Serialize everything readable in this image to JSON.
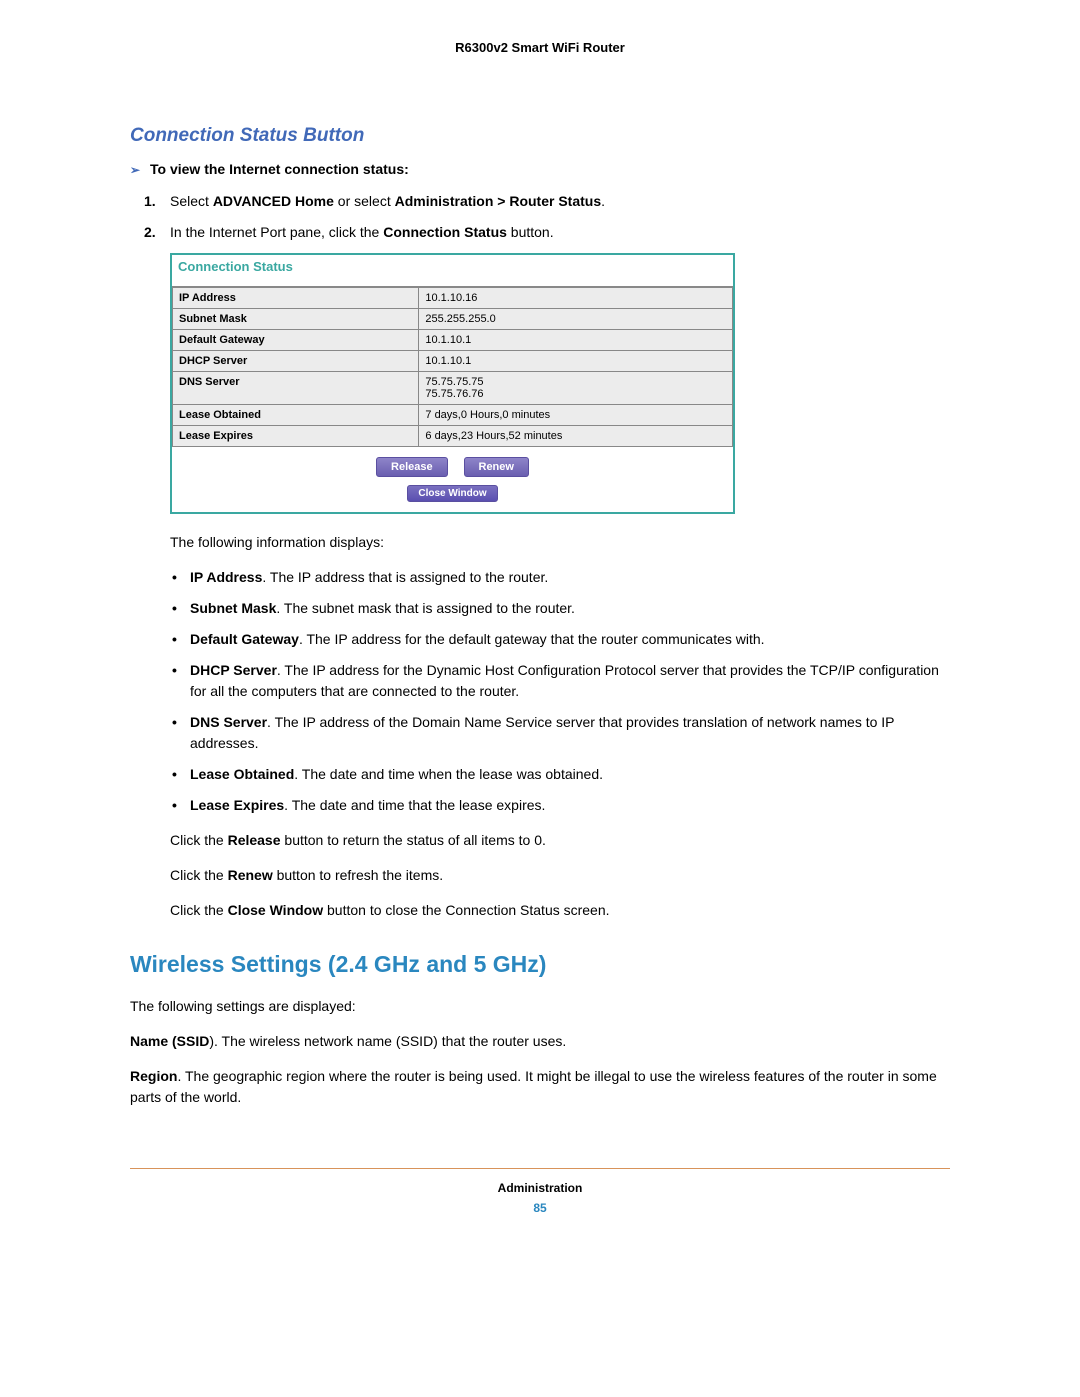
{
  "header": {
    "product": "R6300v2 Smart WiFi Router"
  },
  "h3": "Connection Status Button",
  "proc_intro": "To view the Internet connection status:",
  "steps": {
    "s1_pre": "Select ",
    "s1_b1": "ADVANCED Home",
    "s1_mid": " or select ",
    "s1_b2": "Administration > Router Status",
    "s1_post": ".",
    "s2_pre": "In the Internet Port pane, click the ",
    "s2_b": "Connection Status",
    "s2_post": " button."
  },
  "conn": {
    "title": "Connection Status",
    "rows": [
      {
        "label": "IP Address",
        "value": "10.1.10.16"
      },
      {
        "label": "Subnet Mask",
        "value": "255.255.255.0"
      },
      {
        "label": "Default Gateway",
        "value": "10.1.10.1"
      },
      {
        "label": "DHCP Server",
        "value": "10.1.10.1"
      },
      {
        "label": "DNS Server",
        "value": "75.75.75.75\n75.75.76.76"
      },
      {
        "label": "Lease Obtained",
        "value": "7 days,0 Hours,0 minutes"
      },
      {
        "label": "Lease Expires",
        "value": "6 days,23 Hours,52 minutes"
      }
    ],
    "btn_release": "Release",
    "btn_renew": "Renew",
    "btn_close": "Close Window"
  },
  "info_intro": "The following information displays:",
  "info": [
    {
      "b": "IP Address",
      "t": ". The IP address that is assigned to the router."
    },
    {
      "b": "Subnet Mask",
      "t": ". The subnet mask that is assigned to the router."
    },
    {
      "b": "Default Gateway",
      "t": ". The IP address for the default gateway that the router communicates with."
    },
    {
      "b": "DHCP Server",
      "t": ". The IP address for the Dynamic Host Configuration Protocol server that provides the TCP/IP configuration for all the computers that are connected to the router."
    },
    {
      "b": "DNS Server",
      "t": ". The IP address of the Domain Name Service server that provides translation of network names to IP addresses."
    },
    {
      "b": "Lease Obtained",
      "t": ". The date and time when the lease was obtained."
    },
    {
      "b": "Lease Expires",
      "t": ". The date and time that the lease expires."
    }
  ],
  "click": {
    "release_pre": "Click the ",
    "release_b": "Release",
    "release_post": " button to return the status of all items to 0.",
    "renew_pre": "Click the ",
    "renew_b": "Renew",
    "renew_post": " button to refresh the items.",
    "close_pre": "Click the ",
    "close_b": "Close Window",
    "close_post": " button to close the Connection Status screen."
  },
  "h2": "Wireless Settings (2.4 GHz and 5 GHz)",
  "ws_intro": "The following settings are displayed:",
  "ws_name_b": "Name (SSID",
  "ws_name_t": "). The wireless network name (SSID) that the router uses.",
  "ws_region_b": "Region",
  "ws_region_t": ". The geographic region where the router is being used. It might be illegal to use the wireless features of the router in some parts of the world.",
  "footer": {
    "chapter": "Administration",
    "page": "85"
  }
}
